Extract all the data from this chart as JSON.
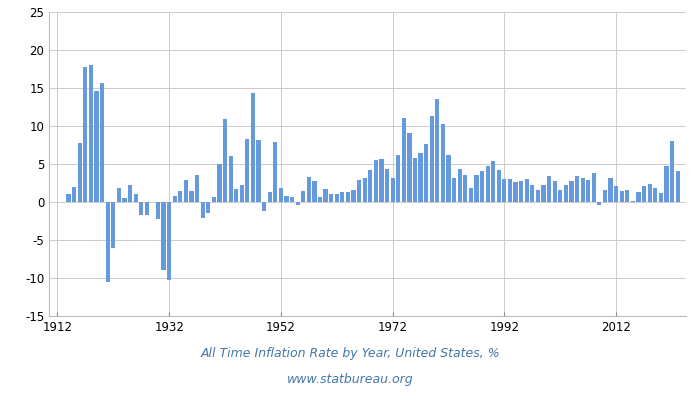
{
  "years": [
    1914,
    1915,
    1916,
    1917,
    1918,
    1919,
    1920,
    1921,
    1922,
    1923,
    1924,
    1925,
    1926,
    1927,
    1928,
    1929,
    1930,
    1931,
    1932,
    1933,
    1934,
    1935,
    1936,
    1937,
    1938,
    1939,
    1940,
    1941,
    1942,
    1943,
    1944,
    1945,
    1946,
    1947,
    1948,
    1949,
    1950,
    1951,
    1952,
    1953,
    1954,
    1955,
    1956,
    1957,
    1958,
    1959,
    1960,
    1961,
    1962,
    1963,
    1964,
    1965,
    1966,
    1967,
    1968,
    1969,
    1970,
    1971,
    1972,
    1973,
    1974,
    1975,
    1976,
    1977,
    1978,
    1979,
    1980,
    1981,
    1982,
    1983,
    1984,
    1985,
    1986,
    1987,
    1988,
    1989,
    1990,
    1991,
    1992,
    1993,
    1994,
    1995,
    1996,
    1997,
    1998,
    1999,
    2000,
    2001,
    2002,
    2003,
    2004,
    2005,
    2006,
    2007,
    2008,
    2009,
    2010,
    2011,
    2012,
    2013,
    2014,
    2015,
    2016,
    2017,
    2018,
    2019,
    2020,
    2021,
    2022,
    2023
  ],
  "values": [
    1.0,
    2.0,
    7.7,
    17.8,
    18.0,
    14.6,
    15.6,
    -10.5,
    -6.1,
    1.8,
    0.5,
    2.3,
    1.1,
    -1.7,
    -1.7,
    0.0,
    -2.3,
    -9.0,
    -10.3,
    0.8,
    1.5,
    2.9,
    1.5,
    3.6,
    -2.1,
    -1.4,
    0.7,
    5.0,
    10.9,
    6.1,
    1.7,
    2.3,
    8.3,
    14.4,
    8.1,
    -1.2,
    1.3,
    7.9,
    1.9,
    0.8,
    0.7,
    -0.4,
    1.5,
    3.3,
    2.8,
    0.7,
    1.7,
    1.0,
    1.0,
    1.3,
    1.3,
    1.6,
    2.9,
    3.1,
    4.2,
    5.5,
    5.7,
    4.4,
    3.2,
    6.2,
    11.0,
    9.1,
    5.8,
    6.5,
    7.6,
    11.3,
    13.5,
    10.3,
    6.2,
    3.2,
    4.3,
    3.6,
    1.9,
    3.6,
    4.1,
    4.8,
    5.4,
    4.2,
    3.0,
    3.0,
    2.6,
    2.8,
    3.0,
    2.3,
    1.6,
    2.2,
    3.4,
    2.8,
    1.6,
    2.3,
    2.7,
    3.4,
    3.2,
    2.9,
    3.8,
    -0.4,
    1.6,
    3.2,
    2.1,
    1.5,
    1.6,
    0.1,
    1.3,
    2.1,
    2.4,
    1.8,
    1.2,
    4.7,
    8.0,
    4.1
  ],
  "bar_color": "#6699dd",
  "background_color": "#ffffff",
  "grid_color": "#cccccc",
  "title": "All Time Inflation Rate by Year, United States, %",
  "subtitle": "www.statbureau.org",
  "title_color": "#4477aa",
  "subtitle_color": "#4477aa",
  "ylim": [
    -15,
    25
  ],
  "yticks": [
    -15,
    -10,
    -5,
    0,
    5,
    10,
    15,
    20,
    25
  ],
  "xticks": [
    1912,
    1932,
    1952,
    1972,
    1992,
    2012
  ],
  "xlim_left": 1910.5,
  "xlim_right": 2024.5,
  "title_fontsize": 9,
  "subtitle_fontsize": 9,
  "tick_fontsize": 8.5
}
